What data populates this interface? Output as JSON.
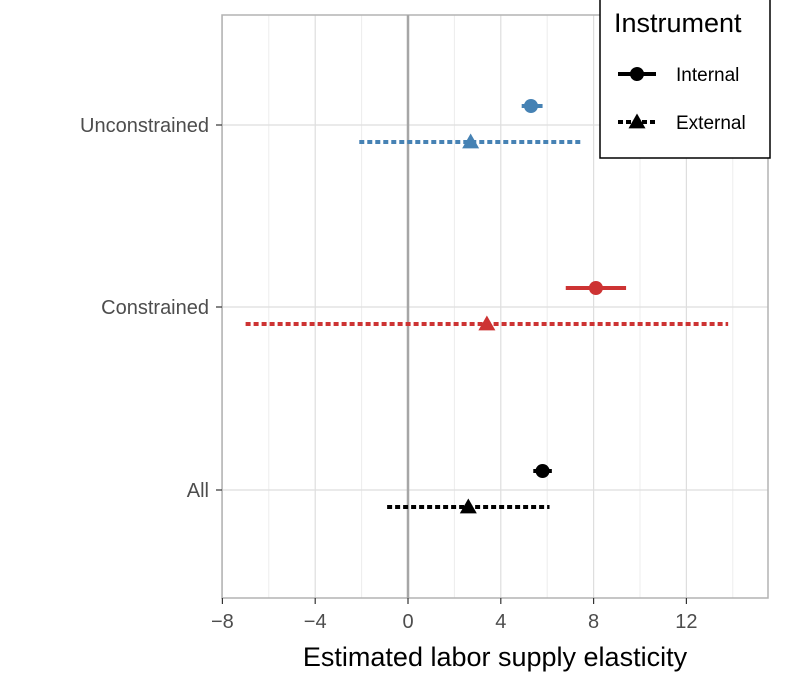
{
  "chart_data": {
    "type": "forest",
    "title": "",
    "xlabel": "Estimated labor supply elasticity",
    "ylabel": "",
    "xlim": [
      -8,
      15.5
    ],
    "xticks": [
      -8,
      -4,
      0,
      4,
      8,
      12
    ],
    "xtick_labels": [
      "−8",
      "−4",
      "0",
      "4",
      "8",
      "12"
    ],
    "reference_line_x": 0,
    "categories": [
      "Unconstrained",
      "Constrained",
      "All"
    ],
    "legend": {
      "title": "Instrument",
      "position": "top-right",
      "entries": [
        {
          "key": "internal",
          "label": "Internal",
          "marker": "circle",
          "line": "solid"
        },
        {
          "key": "external",
          "label": "External",
          "marker": "triangle",
          "line": "dotted"
        }
      ]
    },
    "groups": [
      {
        "category": "Unconstrained",
        "color": "#4682b4",
        "estimates": [
          {
            "instrument": "internal",
            "estimate": 5.3,
            "ci": [
              4.9,
              5.8
            ]
          },
          {
            "instrument": "external",
            "estimate": 2.7,
            "ci": [
              -2.1,
              7.5
            ]
          }
        ]
      },
      {
        "category": "Constrained",
        "color": "#cd3333",
        "estimates": [
          {
            "instrument": "internal",
            "estimate": 8.1,
            "ci": [
              6.8,
              9.4
            ]
          },
          {
            "instrument": "external",
            "estimate": 3.4,
            "ci": [
              -7.0,
              13.8
            ]
          }
        ]
      },
      {
        "category": "All",
        "color": "#000000",
        "estimates": [
          {
            "instrument": "internal",
            "estimate": 5.8,
            "ci": [
              5.4,
              6.2
            ]
          },
          {
            "instrument": "external",
            "estimate": 2.6,
            "ci": [
              -0.9,
              6.1
            ]
          }
        ]
      }
    ]
  }
}
